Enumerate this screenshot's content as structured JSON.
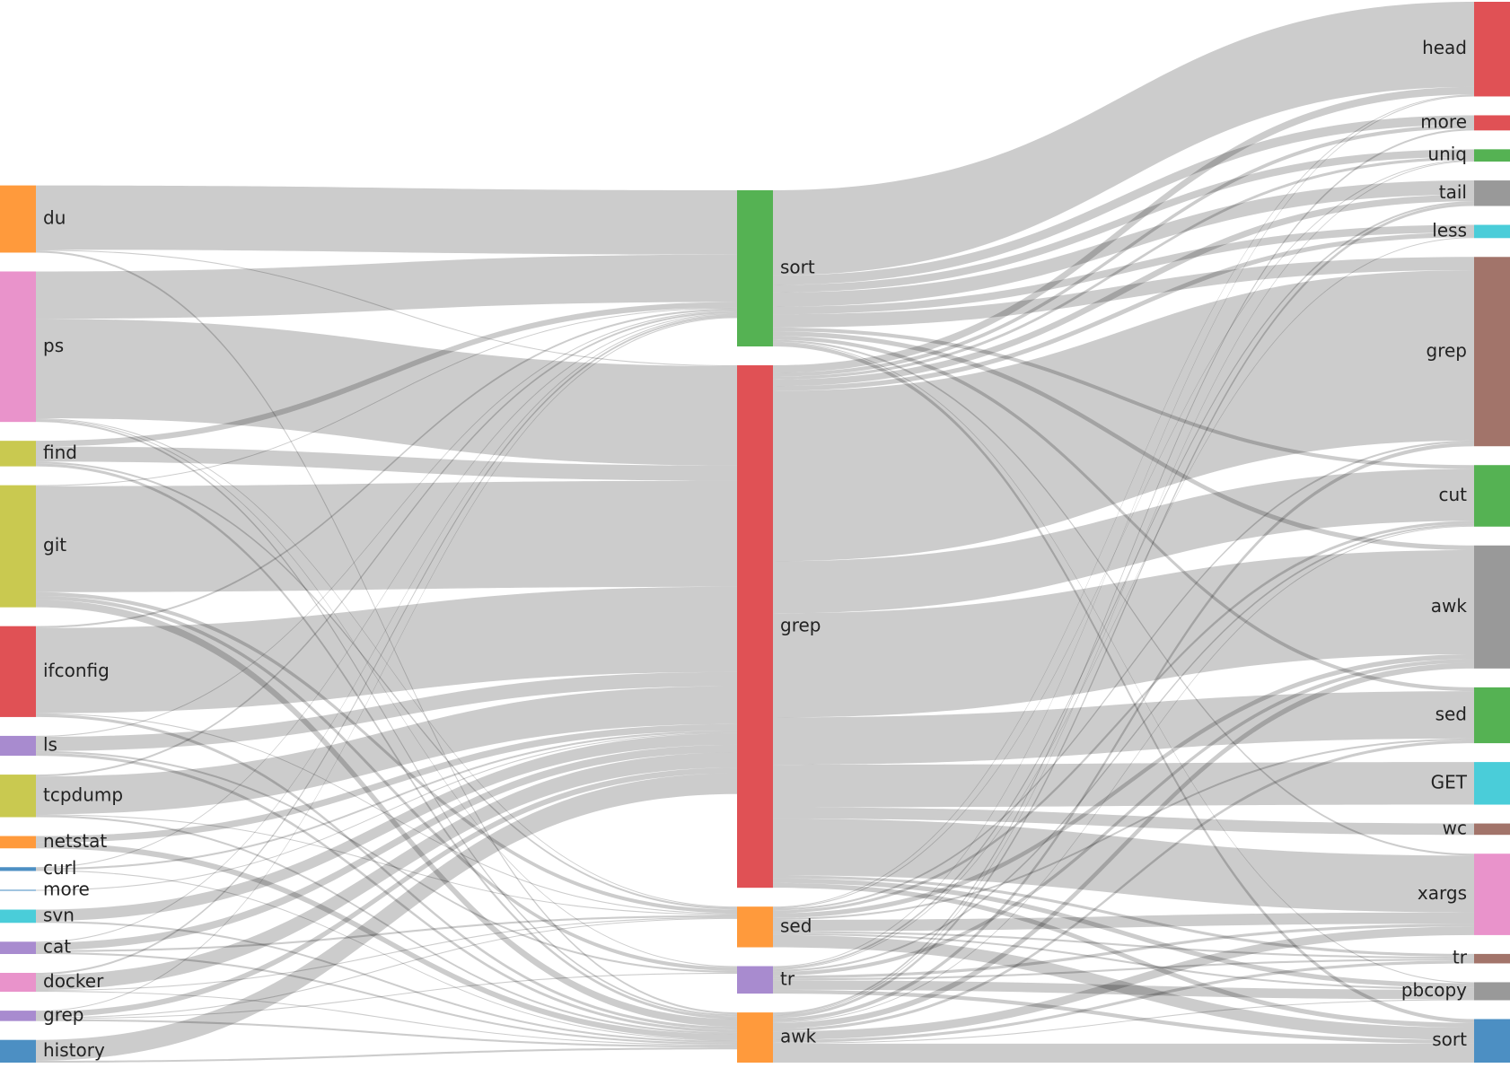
{
  "chart_data": {
    "type": "sankey",
    "labels": [
      "du",
      "ps",
      "find",
      "git",
      "ifconfig",
      "ls",
      "tcpdump",
      "netstat",
      "curl",
      "more",
      "svn",
      "cat",
      "docker",
      "grep",
      "history",
      "sort",
      "grep",
      "sed",
      "tr",
      "awk",
      "head",
      "more",
      "uniq",
      "tail",
      "less",
      "grep",
      "cut",
      "awk",
      "sed",
      "GET",
      "wc",
      "xargs",
      "tr",
      "pbcopy",
      "sort"
    ],
    "node_colors": [
      "#ff9a3c",
      "#e993cb",
      "#c9c950",
      "#c9c950",
      "#e05155",
      "#a88bcf",
      "#c9c950",
      "#ff9a3c",
      "#4c8fc3",
      "#4c8fc3",
      "#4acdd9",
      "#a88bcf",
      "#e993cb",
      "#a88bcf",
      "#4c8fc3",
      "#55b253",
      "#e05155",
      "#ff9a3c",
      "#a88bcf",
      "#ff9a3c",
      "#e05155",
      "#e05155",
      "#55b253",
      "#999999",
      "#4acdd9",
      "#a2746a",
      "#55b253",
      "#999999",
      "#55b253",
      "#4acdd9",
      "#a2746a",
      "#e993cb",
      "#a2746a",
      "#999999",
      "#4c8fc3"
    ],
    "link_color": "rgba(0,0,0,0.2)",
    "links": [
      {
        "source": 0,
        "target": 15,
        "value": 68
      },
      {
        "source": 0,
        "target": 16,
        "value": 1
      },
      {
        "source": 0,
        "target": 19,
        "value": 2
      },
      {
        "source": 1,
        "target": 15,
        "value": 50
      },
      {
        "source": 1,
        "target": 16,
        "value": 105
      },
      {
        "source": 1,
        "target": 19,
        "value": 2
      },
      {
        "source": 1,
        "target": 17,
        "value": 1
      },
      {
        "source": 1,
        "target": 18,
        "value": 1
      },
      {
        "source": 2,
        "target": 15,
        "value": 6
      },
      {
        "source": 2,
        "target": 16,
        "value": 16
      },
      {
        "source": 2,
        "target": 19,
        "value": 3
      },
      {
        "source": 2,
        "target": 17,
        "value": 2
      },
      {
        "source": 3,
        "target": 15,
        "value": 1
      },
      {
        "source": 3,
        "target": 16,
        "value": 112
      },
      {
        "source": 3,
        "target": 19,
        "value": 8
      },
      {
        "source": 3,
        "target": 17,
        "value": 4
      },
      {
        "source": 3,
        "target": 18,
        "value": 4
      },
      {
        "source": 4,
        "target": 15,
        "value": 2
      },
      {
        "source": 4,
        "target": 16,
        "value": 90
      },
      {
        "source": 4,
        "target": 19,
        "value": 3
      },
      {
        "source": 4,
        "target": 17,
        "value": 1
      },
      {
        "source": 5,
        "target": 15,
        "value": 1
      },
      {
        "source": 5,
        "target": 16,
        "value": 15
      },
      {
        "source": 5,
        "target": 19,
        "value": 3
      },
      {
        "source": 5,
        "target": 18,
        "value": 2
      },
      {
        "source": 6,
        "target": 15,
        "value": 2
      },
      {
        "source": 6,
        "target": 16,
        "value": 40
      },
      {
        "source": 6,
        "target": 19,
        "value": 2
      },
      {
        "source": 6,
        "target": 17,
        "value": 1
      },
      {
        "source": 7,
        "target": 16,
        "value": 7
      },
      {
        "source": 7,
        "target": 19,
        "value": 6
      },
      {
        "source": 8,
        "target": 15,
        "value": 1
      },
      {
        "source": 8,
        "target": 16,
        "value": 2
      },
      {
        "source": 8,
        "target": 19,
        "value": 1
      },
      {
        "source": 9,
        "target": 16,
        "value": 1
      },
      {
        "source": 10,
        "target": 16,
        "value": 12
      },
      {
        "source": 10,
        "target": 19,
        "value": 2
      },
      {
        "source": 11,
        "target": 15,
        "value": 1
      },
      {
        "source": 11,
        "target": 16,
        "value": 8
      },
      {
        "source": 11,
        "target": 17,
        "value": 2
      },
      {
        "source": 11,
        "target": 19,
        "value": 2
      },
      {
        "source": 12,
        "target": 15,
        "value": 2
      },
      {
        "source": 12,
        "target": 16,
        "value": 16
      },
      {
        "source": 12,
        "target": 17,
        "value": 1
      },
      {
        "source": 12,
        "target": 19,
        "value": 1
      },
      {
        "source": 13,
        "target": 15,
        "value": 1
      },
      {
        "source": 13,
        "target": 16,
        "value": 6
      },
      {
        "source": 13,
        "target": 19,
        "value": 2
      },
      {
        "source": 13,
        "target": 17,
        "value": 1
      },
      {
        "source": 13,
        "target": 18,
        "value": 1
      },
      {
        "source": 14,
        "target": 16,
        "value": 22
      },
      {
        "source": 14,
        "target": 19,
        "value": 2
      },
      {
        "source": 15,
        "target": 20,
        "value": 90
      },
      {
        "source": 15,
        "target": 21,
        "value": 10
      },
      {
        "source": 15,
        "target": 22,
        "value": 8
      },
      {
        "source": 15,
        "target": 23,
        "value": 15
      },
      {
        "source": 15,
        "target": 24,
        "value": 8
      },
      {
        "source": 15,
        "target": 25,
        "value": 14
      },
      {
        "source": 15,
        "target": 26,
        "value": 4
      },
      {
        "source": 15,
        "target": 27,
        "value": 5
      },
      {
        "source": 15,
        "target": 28,
        "value": 4
      },
      {
        "source": 15,
        "target": 31,
        "value": 2
      },
      {
        "source": 15,
        "target": 33,
        "value": 1
      },
      {
        "source": 15,
        "target": 34,
        "value": 4
      },
      {
        "source": 16,
        "target": 20,
        "value": 8
      },
      {
        "source": 16,
        "target": 21,
        "value": 4
      },
      {
        "source": 16,
        "target": 22,
        "value": 3
      },
      {
        "source": 16,
        "target": 23,
        "value": 7
      },
      {
        "source": 16,
        "target": 24,
        "value": 5
      },
      {
        "source": 16,
        "target": 25,
        "value": 180
      },
      {
        "source": 16,
        "target": 26,
        "value": 55
      },
      {
        "source": 16,
        "target": 27,
        "value": 110
      },
      {
        "source": 16,
        "target": 28,
        "value": 50
      },
      {
        "source": 16,
        "target": 29,
        "value": 45
      },
      {
        "source": 16,
        "target": 30,
        "value": 12
      },
      {
        "source": 16,
        "target": 31,
        "value": 60
      },
      {
        "source": 16,
        "target": 32,
        "value": 3
      },
      {
        "source": 16,
        "target": 33,
        "value": 5
      },
      {
        "source": 16,
        "target": 34,
        "value": 5
      },
      {
        "source": 17,
        "target": 20,
        "value": 1
      },
      {
        "source": 17,
        "target": 22,
        "value": 1
      },
      {
        "source": 17,
        "target": 25,
        "value": 2
      },
      {
        "source": 17,
        "target": 26,
        "value": 3
      },
      {
        "source": 17,
        "target": 27,
        "value": 5
      },
      {
        "source": 17,
        "target": 28,
        "value": 2
      },
      {
        "source": 17,
        "target": 31,
        "value": 12
      },
      {
        "source": 17,
        "target": 32,
        "value": 2
      },
      {
        "source": 17,
        "target": 33,
        "value": 2
      },
      {
        "source": 17,
        "target": 34,
        "value": 13
      },
      {
        "source": 18,
        "target": 20,
        "value": 1
      },
      {
        "source": 18,
        "target": 23,
        "value": 2
      },
      {
        "source": 18,
        "target": 24,
        "value": 1
      },
      {
        "source": 18,
        "target": 26,
        "value": 2
      },
      {
        "source": 18,
        "target": 27,
        "value": 4
      },
      {
        "source": 18,
        "target": 31,
        "value": 3
      },
      {
        "source": 18,
        "target": 32,
        "value": 2
      },
      {
        "source": 18,
        "target": 33,
        "value": 10
      },
      {
        "source": 18,
        "target": 34,
        "value": 4
      },
      {
        "source": 19,
        "target": 21,
        "value": 2
      },
      {
        "source": 19,
        "target": 22,
        "value": 1
      },
      {
        "source": 19,
        "target": 23,
        "value": 3
      },
      {
        "source": 19,
        "target": 25,
        "value": 4
      },
      {
        "source": 19,
        "target": 26,
        "value": 1
      },
      {
        "source": 19,
        "target": 27,
        "value": 6
      },
      {
        "source": 19,
        "target": 28,
        "value": 3
      },
      {
        "source": 19,
        "target": 31,
        "value": 9
      },
      {
        "source": 19,
        "target": 32,
        "value": 3
      },
      {
        "source": 19,
        "target": 33,
        "value": 1
      },
      {
        "source": 19,
        "target": 34,
        "value": 20
      }
    ]
  }
}
